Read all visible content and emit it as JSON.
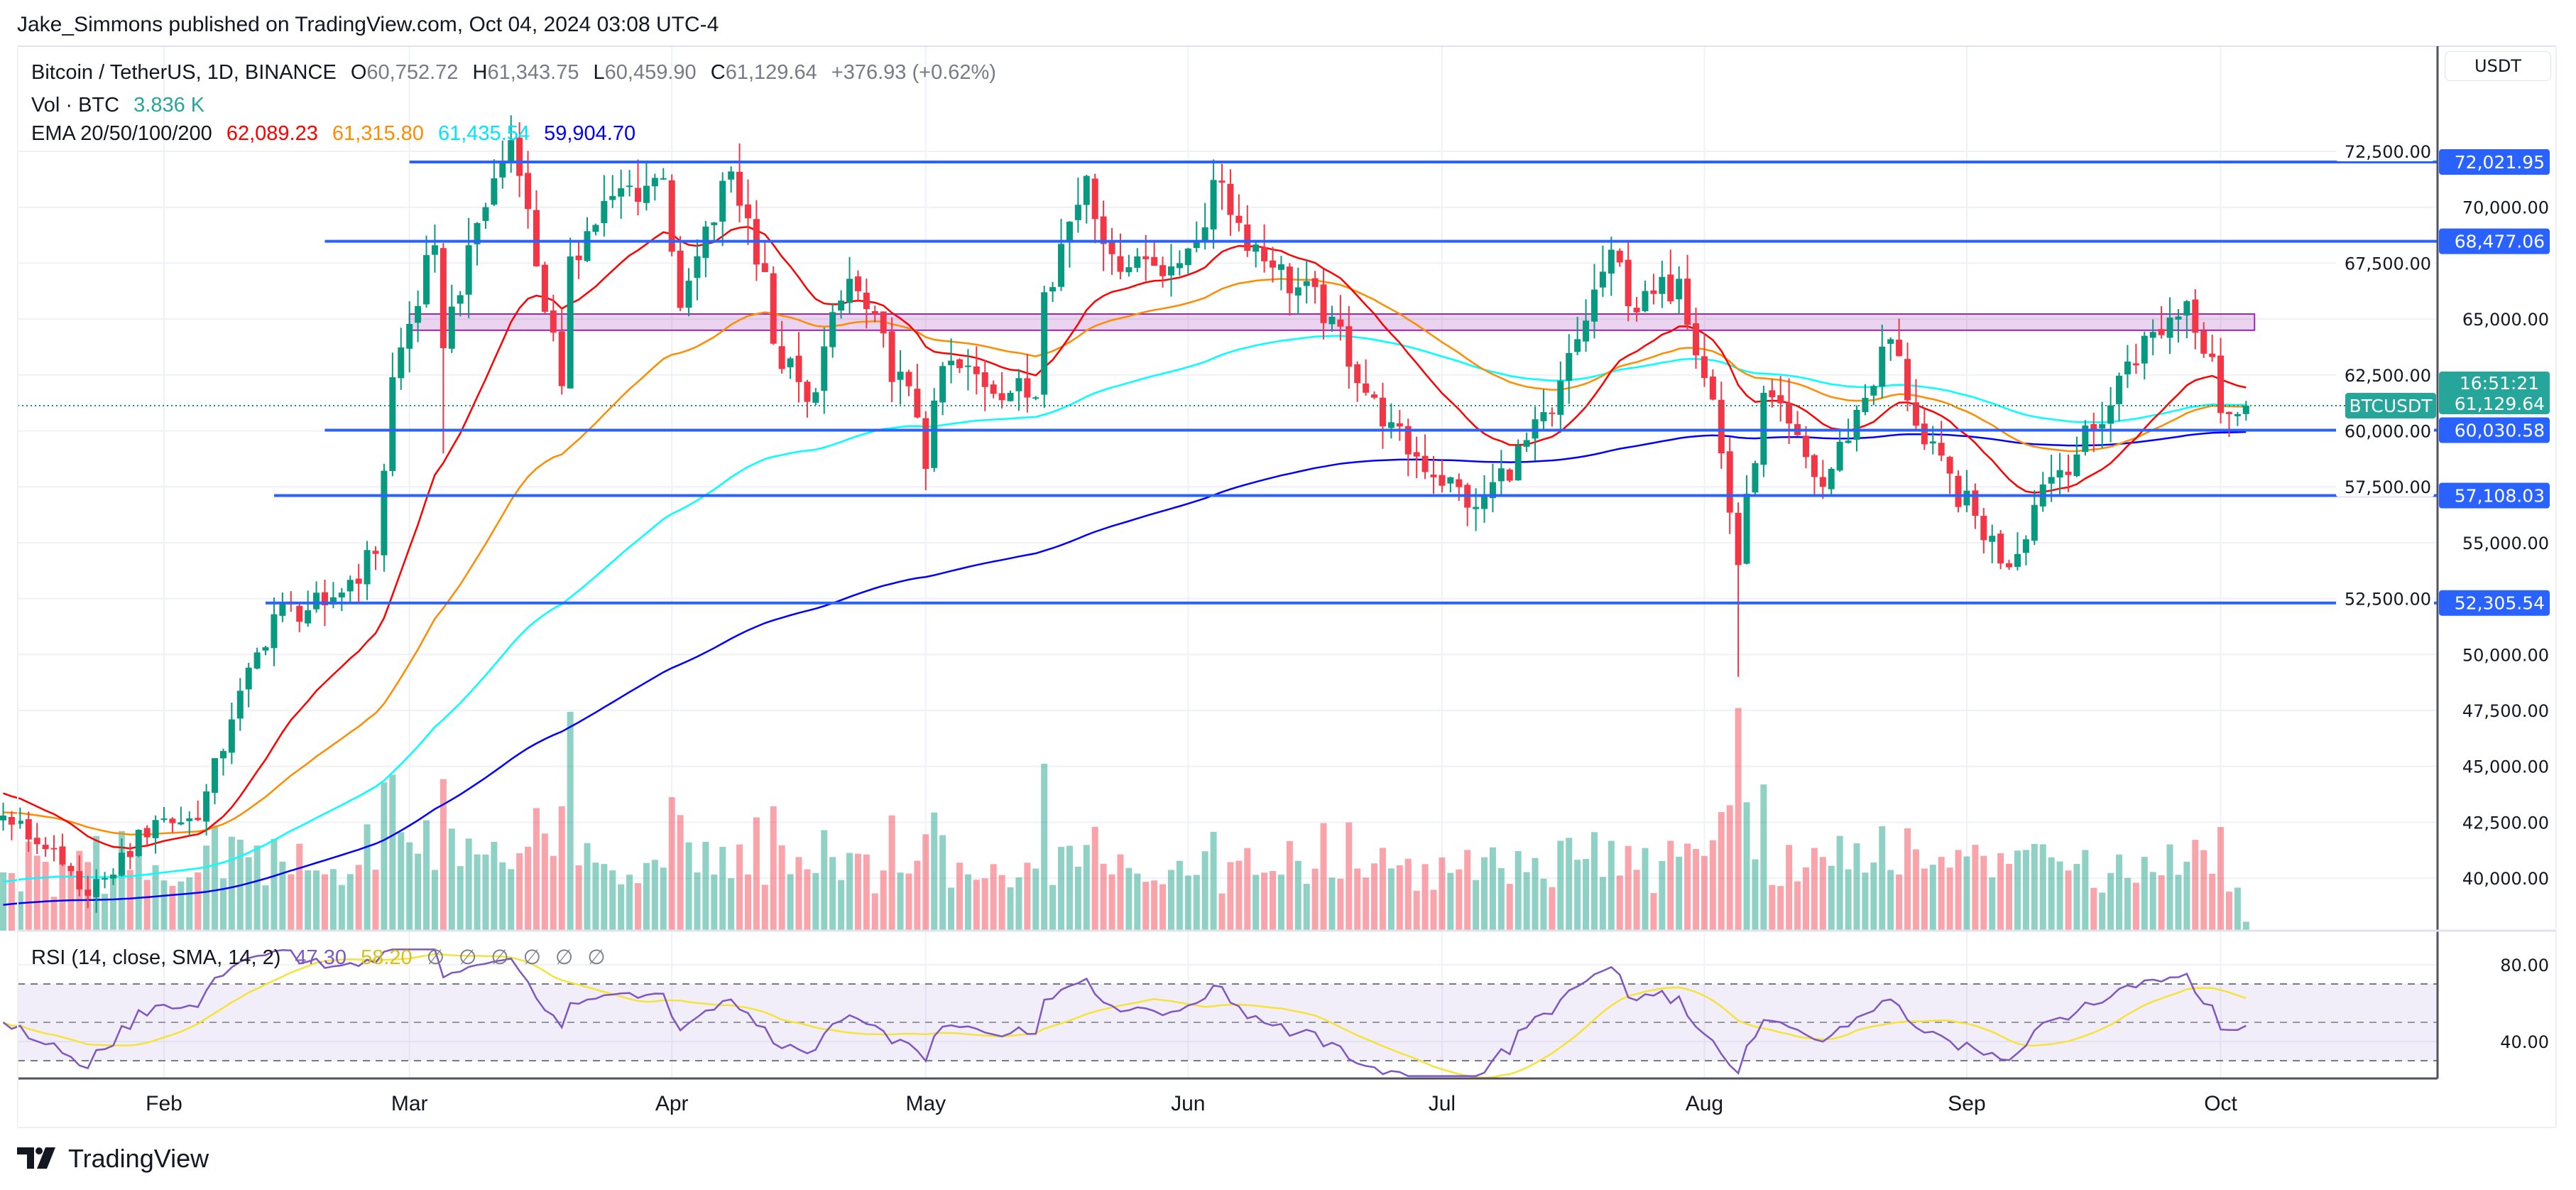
{
  "header": {
    "published": "Jake_Simmons published on TradingView.com, Oct 04, 2024 03:08 UTC-4"
  },
  "legend": {
    "symbol": "Bitcoin / TetherUS, 1D, BINANCE",
    "o_label": "O",
    "o": "60,752.72",
    "h_label": "H",
    "h": "61,343.75",
    "l_label": "L",
    "l": "60,459.90",
    "c_label": "C",
    "c": "61,129.64",
    "change": "+376.93 (+0.62%)",
    "vol_label": "Vol · BTC",
    "vol": "3.836 K",
    "ema_label": "EMA 20/50/100/200",
    "ema20": "62,089.23",
    "ema50": "61,315.80",
    "ema100": "61,435.54",
    "ema200": "59,904.70"
  },
  "rsi_legend": {
    "label": "RSI (14, close, SMA, 14, 2)",
    "rsi": "47.30",
    "sma": "58.20",
    "empty": [
      "∅",
      "∅",
      "∅",
      "∅",
      "∅",
      "∅"
    ]
  },
  "price_axis": {
    "currency": "USDT"
  },
  "current": {
    "symbol": "BTCUSDT",
    "price": "61,129.64",
    "countdown": "16:51:21"
  },
  "footer": {
    "brand": "TradingView"
  },
  "colors": {
    "up": "#089981",
    "down": "#f23645",
    "level": "#2962ff",
    "ema20": "#ff0000",
    "ema50": "#ff8c00",
    "ema100": "#00ffff",
    "ema200": "#0000ff",
    "rsi": "#7e57c2",
    "rsi_sma": "#f5e33b",
    "zone": "#9c27b0"
  },
  "chart_data": {
    "type": "candlestick",
    "title": "Bitcoin / TetherUS, 1D, BINANCE",
    "ylim": [
      38000,
      74000
    ],
    "y_ticks": [
      "72,500.00",
      "70,000.00",
      "67,500.00",
      "65,000.00",
      "62,500.00",
      "60,000.00",
      "57,500.00",
      "55,000.00",
      "52,500.00",
      "50,000.00",
      "47,500.00",
      "45,000.00",
      "42,500.00",
      "40,000.00"
    ],
    "y_tick_values": [
      72500,
      70000,
      67500,
      65000,
      62500,
      60000,
      57500,
      55000,
      52500,
      50000,
      47500,
      45000,
      42500,
      40000
    ],
    "x_ticks": [
      [
        "Feb",
        "2024-02-01"
      ],
      [
        "Mar",
        "2024-03-01"
      ],
      [
        "Apr",
        "2024-04-01"
      ],
      [
        "May",
        "2024-05-01"
      ],
      [
        "Jun",
        "2024-06-01"
      ],
      [
        "Jul",
        "2024-07-01"
      ],
      [
        "Aug",
        "2024-08-01"
      ],
      [
        "Sep",
        "2024-09-01"
      ],
      [
        "Oct",
        "2024-10-01"
      ]
    ],
    "close_anchors": [
      [
        "2024-01-13",
        42800
      ],
      [
        "2024-01-18",
        41300
      ],
      [
        "2024-01-22",
        39500
      ],
      [
        "2024-01-25",
        40000
      ],
      [
        "2024-01-31",
        42600
      ],
      [
        "2024-02-05",
        42600
      ],
      [
        "2024-02-09",
        47100
      ],
      [
        "2024-02-14",
        51800
      ],
      [
        "2024-02-20",
        52200
      ],
      [
        "2024-02-26",
        54500
      ],
      [
        "2024-02-28",
        62400
      ],
      [
        "2024-03-04",
        68300
      ],
      [
        "2024-03-05",
        63700
      ],
      [
        "2024-03-08",
        68300
      ],
      [
        "2024-03-13",
        73000
      ],
      [
        "2024-03-14",
        71400
      ],
      [
        "2024-03-19",
        62000
      ],
      [
        "2024-03-20",
        67800
      ],
      [
        "2024-03-25",
        70500
      ],
      [
        "2024-03-31",
        71300
      ],
      [
        "2024-04-02",
        65500
      ],
      [
        "2024-04-08",
        71600
      ],
      [
        "2024-04-12",
        67100
      ],
      [
        "2024-04-13",
        63900
      ],
      [
        "2024-04-17",
        61300
      ],
      [
        "2024-04-22",
        66800
      ],
      [
        "2024-04-30",
        60600
      ],
      [
        "2024-05-01",
        58300
      ],
      [
        "2024-05-03",
        62900
      ],
      [
        "2024-05-14",
        61500
      ],
      [
        "2024-05-15",
        66200
      ],
      [
        "2024-05-20",
        71400
      ],
      [
        "2024-05-23",
        67900
      ],
      [
        "2024-05-31",
        67500
      ],
      [
        "2024-06-05",
        71100
      ],
      [
        "2024-06-07",
        69300
      ],
      [
        "2024-06-11",
        67300
      ],
      [
        "2024-06-18",
        65100
      ],
      [
        "2024-06-24",
        60200
      ],
      [
        "2024-07-05",
        56600
      ],
      [
        "2024-07-14",
        60800
      ],
      [
        "2024-07-17",
        64100
      ],
      [
        "2024-07-21",
        68100
      ],
      [
        "2024-07-24",
        65300
      ],
      [
        "2024-07-29",
        66800
      ],
      [
        "2024-08-02",
        61400
      ],
      [
        "2024-08-05",
        54000
      ],
      [
        "2024-08-08",
        61700
      ],
      [
        "2024-08-15",
        57500
      ],
      [
        "2024-08-23",
        64100
      ],
      [
        "2024-08-27",
        59400
      ],
      [
        "2024-09-06",
        53900
      ],
      [
        "2024-09-10",
        57600
      ],
      [
        "2024-09-17",
        60300
      ],
      [
        "2024-09-20",
        63100
      ],
      [
        "2024-09-27",
        65800
      ],
      [
        "2024-09-30",
        63300
      ],
      [
        "2024-10-01",
        60800
      ],
      [
        "2024-10-03",
        60750
      ],
      [
        "2024-10-04",
        61130
      ]
    ],
    "last_volume_k": 3.836,
    "ema_seed": {
      "ema20": 43900,
      "ema50": 42950,
      "ema100": 39780,
      "ema200": 38770
    },
    "levels": [
      {
        "price": 72021.95,
        "label": "72,021.95",
        "from": "2024-03-01"
      },
      {
        "price": 68477.06,
        "label": "68,477.06",
        "from": "2024-02-20"
      },
      {
        "price": 60030.58,
        "label": "60,030.58",
        "from": "2024-02-20"
      },
      {
        "price": 57108.03,
        "label": "57,108.03",
        "from": "2024-02-14"
      },
      {
        "price": 52305.54,
        "label": "52,305.54",
        "from": "2024-02-13"
      }
    ],
    "zone": {
      "top": 65225,
      "bottom": 64500,
      "from": "2024-03-01",
      "to": "2024-10-05"
    },
    "current_price": 61129.64,
    "rsi": {
      "ylim": [
        20,
        90
      ],
      "ticks": [
        "80.00",
        "40.00"
      ],
      "tick_values": [
        80,
        40
      ],
      "upper_band": 70,
      "middle": 50,
      "lower_band": 30,
      "period": 14,
      "sma_period": 14
    }
  }
}
